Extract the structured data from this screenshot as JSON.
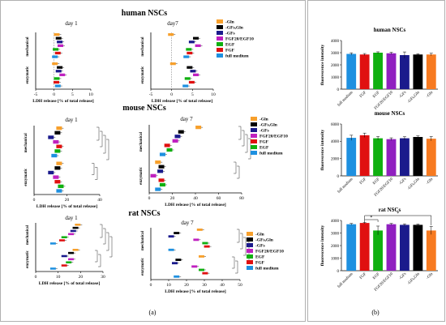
{
  "panel_labels": {
    "a": "(a)",
    "b": "(b)"
  },
  "row_titles": [
    "human NSCs",
    "mouse NSCs",
    "rat NSCs"
  ],
  "day_labels": [
    "day 1",
    "day7",
    "day 1",
    "day 7",
    "day 1",
    "day 7"
  ],
  "y_group_labels": {
    "top": "mechanical",
    "bottom": "enzymatic"
  },
  "conditions": [
    "-Gln",
    "-GFs,Gln",
    "-GFs",
    "FGF20/EGF10",
    "EGF",
    "FGF",
    "full medium"
  ],
  "condition_colors": [
    "#f7a02c",
    "#000000",
    "#1a1a8c",
    "#c020c0",
    "#10b010",
    "#e01010",
    "#1e90e0"
  ],
  "legend_labels": {
    "human": [
      "-Gln",
      "-GFs,Gln",
      "-GFs",
      "FGF20/EGF10",
      "EGF",
      "FGF",
      "full medium"
    ],
    "mouse": [
      "-Gln",
      "-GFs,Gln",
      "-GFs",
      "FGF20/EGF10",
      "FGF",
      "EGF",
      "full medium"
    ],
    "rat": [
      "-Gln",
      "-GFs,Gln",
      "-GFs",
      "FGF20/EGF10",
      "EGF",
      "FGF",
      "full medium"
    ]
  },
  "lines_xlabel": "LDH release [% of total release]",
  "bars_ylabel": "fluorescence intensity",
  "bar_categories": [
    "full medium",
    "FGF",
    "EGF",
    "FGF20/EGF10",
    "-GFs",
    "-GFs,Gln",
    "-Gln"
  ],
  "bar_colors": [
    "#1e90e0",
    "#e01010",
    "#10b010",
    "#9020c0",
    "#1a1a8c",
    "#000000",
    "#f77a20"
  ],
  "sig_star": "*",
  "chart_data": [
    {
      "type": "bar",
      "title": "human NSCs",
      "subtitle": "day 1",
      "xlim": [
        -5,
        10
      ],
      "xticks": [
        -5,
        0,
        5,
        10
      ],
      "series": [
        {
          "name": "-Gln",
          "mechanical": 1.5,
          "enzymatic": 1.0
        },
        {
          "name": "-GFs,Gln",
          "mechanical": 2.0,
          "enzymatic": 2.3
        },
        {
          "name": "-GFs",
          "mechanical": 2.3,
          "enzymatic": 2.0
        },
        {
          "name": "FGF20/EGF10",
          "mechanical": 2.5,
          "enzymatic": 3.0
        },
        {
          "name": "EGF",
          "mechanical": 1.2,
          "enzymatic": 1.5
        },
        {
          "name": "FGF",
          "mechanical": 1.8,
          "enzymatic": 1.4
        },
        {
          "name": "full medium",
          "mechanical": 1.0,
          "enzymatic": 1.8
        }
      ]
    },
    {
      "type": "bar",
      "title": "human NSCs",
      "subtitle": "day7",
      "xlim": [
        -5,
        10
      ],
      "xticks": [
        -5,
        0,
        5,
        10
      ],
      "series": [
        {
          "name": "-Gln",
          "mechanical": 0.5,
          "enzymatic": 1.0
        },
        {
          "name": "-GFs,Gln",
          "mechanical": 6.5,
          "enzymatic": 5.0
        },
        {
          "name": "-GFs",
          "mechanical": 5.5,
          "enzymatic": 5.8
        },
        {
          "name": "FGF20/EGF10",
          "mechanical": 7.0,
          "enzymatic": 6.5
        },
        {
          "name": "EGF",
          "mechanical": 4.8,
          "enzymatic": 4.5
        },
        {
          "name": "FGF",
          "mechanical": 5.0,
          "enzymatic": 5.5
        },
        {
          "name": "full medium",
          "mechanical": 4.2,
          "enzymatic": 4.0
        }
      ]
    },
    {
      "type": "bar",
      "title": "mouse NSCs",
      "subtitle": "day 1",
      "xlim": [
        0,
        40
      ],
      "xticks": [
        0,
        20,
        40
      ],
      "series": [
        {
          "name": "-Gln",
          "mechanical": 17,
          "enzymatic": 17
        },
        {
          "name": "-GFs,Gln",
          "mechanical": 16,
          "enzymatic": 16
        },
        {
          "name": "-GFs",
          "mechanical": 12,
          "enzymatic": 12
        },
        {
          "name": "FGF20/EGF10",
          "mechanical": 15,
          "enzymatic": 15
        },
        {
          "name": "FGF",
          "mechanical": 17,
          "enzymatic": 16
        },
        {
          "name": "EGF",
          "mechanical": 16,
          "enzymatic": 18
        },
        {
          "name": "full medium",
          "mechanical": 14,
          "enzymatic": 17
        }
      ]
    },
    {
      "type": "bar",
      "title": "mouse NSCs",
      "subtitle": "day 7",
      "xlim": [
        0,
        80
      ],
      "xticks": [
        0,
        20,
        40,
        60,
        80
      ],
      "series": [
        {
          "name": "-Gln",
          "mechanical": 45,
          "enzymatic": 10
        },
        {
          "name": "-GFs,Gln",
          "mechanical": 30,
          "enzymatic": 13
        },
        {
          "name": "-GFs",
          "mechanical": 27,
          "enzymatic": 12
        },
        {
          "name": "FGF20/EGF10",
          "mechanical": 25,
          "enzymatic": 6
        },
        {
          "name": "FGF",
          "mechanical": 18,
          "enzymatic": 13
        },
        {
          "name": "EGF",
          "mechanical": 20,
          "enzymatic": 14
        },
        {
          "name": "full medium",
          "mechanical": 14,
          "enzymatic": 10
        }
      ]
    },
    {
      "type": "bar",
      "title": "rat NSCs",
      "subtitle": "day 1",
      "xlim": [
        0,
        30
      ],
      "xticks": [
        0,
        10,
        20,
        30
      ],
      "series": [
        {
          "name": "-Gln",
          "mechanical": 20,
          "enzymatic": 19
        },
        {
          "name": "-GFs,Gln",
          "mechanical": 19,
          "enzymatic": 17
        },
        {
          "name": "-GFs",
          "mechanical": 18,
          "enzymatic": 14
        },
        {
          "name": "FGF20/EGF10",
          "mechanical": 17,
          "enzymatic": 17
        },
        {
          "name": "EGF",
          "mechanical": 14,
          "enzymatic": 16
        },
        {
          "name": "FGF",
          "mechanical": 13,
          "enzymatic": 14
        },
        {
          "name": "full medium",
          "mechanical": 9,
          "enzymatic": 9
        }
      ]
    },
    {
      "type": "bar",
      "title": "rat NSCs",
      "subtitle": "day 7",
      "xlim": [
        0,
        50
      ],
      "xticks": [
        0,
        10,
        20,
        30,
        40,
        50
      ],
      "series": [
        {
          "name": "-Gln",
          "mechanical": 29,
          "enzymatic": 30
        },
        {
          "name": "-GFs,Gln",
          "mechanical": 16,
          "enzymatic": 17
        },
        {
          "name": "-GFs",
          "mechanical": 13,
          "enzymatic": 15
        },
        {
          "name": "FGF20/EGF10",
          "mechanical": 27,
          "enzymatic": 26
        },
        {
          "name": "EGF",
          "mechanical": 32,
          "enzymatic": 30
        },
        {
          "name": "FGF",
          "mechanical": 33,
          "enzymatic": 32
        },
        {
          "name": "full medium",
          "mechanical": 13,
          "enzymatic": 16
        }
      ]
    },
    {
      "type": "bar",
      "title": "human NSCs",
      "ylabel": "fluorescence intensity",
      "ylim": [
        0,
        4000
      ],
      "yticks": [
        0,
        1000,
        2000,
        3000,
        4000
      ],
      "categories": [
        "full medium",
        "FGF",
        "EGF",
        "FGF20/EGF10",
        "-GFs",
        "-GFs,Gln",
        "-Gln"
      ],
      "values": [
        2900,
        2850,
        3000,
        2950,
        2800,
        2850,
        2850
      ],
      "errors": [
        90,
        80,
        70,
        80,
        260,
        60,
        100
      ]
    },
    {
      "type": "bar",
      "title": "mouse NSCs",
      "ylabel": "fluorescence intensity",
      "ylim": [
        0,
        6000
      ],
      "yticks": [
        0,
        2000,
        4000,
        6000
      ],
      "categories": [
        "full medium",
        "FGF",
        "EGF",
        "FGF20/EGF10",
        "-GFs",
        "-GFs,Gln",
        "-Gln"
      ],
      "values": [
        4400,
        4700,
        4350,
        4250,
        4350,
        4500,
        4300
      ],
      "errors": [
        300,
        250,
        200,
        150,
        180,
        120,
        250
      ]
    },
    {
      "type": "bar",
      "title": "rat NSCs",
      "ylabel": "fluorescence intensity",
      "ylim": [
        0,
        4000
      ],
      "yticks": [
        0,
        1000,
        2000,
        3000,
        4000
      ],
      "categories": [
        "full medium",
        "FGF",
        "EGF",
        "FGF20/EGF10",
        "-GFs",
        "-GFs,Gln",
        "-Gln"
      ],
      "values": [
        3700,
        3800,
        3200,
        3700,
        3650,
        3650,
        3200
      ],
      "errors": [
        60,
        50,
        350,
        60,
        80,
        60,
        320
      ]
    }
  ]
}
